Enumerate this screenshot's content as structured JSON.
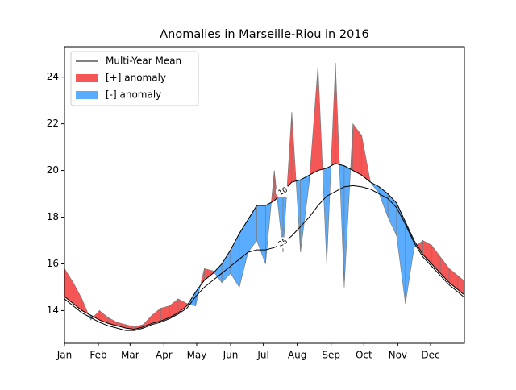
{
  "chart_data": {
    "type": "anomaly",
    "title": "Anomalies in Marseille-Riou in 2016",
    "x": [
      0,
      8,
      16,
      24,
      32,
      40,
      48,
      56,
      64,
      72,
      80,
      88,
      96,
      104,
      112,
      120,
      128,
      136,
      144,
      152,
      160,
      168,
      176,
      184,
      192,
      200,
      208,
      216,
      224,
      232,
      240,
      248,
      256,
      264,
      272,
      280,
      288,
      296,
      304,
      312,
      320,
      328,
      336,
      344,
      352,
      360,
      365
    ],
    "xlim": [
      0,
      366
    ],
    "xticks": [
      {
        "value": 0,
        "label": "Jan"
      },
      {
        "value": 31,
        "label": "Feb"
      },
      {
        "value": 60,
        "label": "Mar"
      },
      {
        "value": 91,
        "label": "Apr"
      },
      {
        "value": 121,
        "label": "May"
      },
      {
        "value": 152,
        "label": "Jun"
      },
      {
        "value": 182,
        "label": "Jul"
      },
      {
        "value": 213,
        "label": "Aug"
      },
      {
        "value": 244,
        "label": "Sep"
      },
      {
        "value": 274,
        "label": "Oct"
      },
      {
        "value": 305,
        "label": "Nov"
      },
      {
        "value": 335,
        "label": "Dec"
      }
    ],
    "ylim": [
      12.6,
      25.3
    ],
    "yticks": [
      14,
      16,
      18,
      20,
      22,
      24
    ],
    "legend": [
      {
        "name": "Multi-Year Mean",
        "color": "#000000"
      },
      {
        "name": "[+] anomaly",
        "color": "#f55656"
      },
      {
        "name": "[-] anomaly",
        "color": "#5aacff"
      }
    ],
    "mean_lines": [
      {
        "label": "10",
        "values": [
          14.6,
          14.3,
          14.0,
          13.8,
          13.6,
          13.45,
          13.35,
          13.25,
          13.2,
          13.3,
          13.45,
          13.55,
          13.7,
          13.9,
          14.2,
          14.8,
          15.3,
          15.6,
          16.0,
          16.6,
          17.3,
          17.9,
          18.5,
          18.5,
          18.7,
          19.1,
          19.5,
          19.6,
          19.8,
          20.0,
          20.1,
          20.3,
          20.2,
          20.0,
          19.8,
          19.5,
          19.3,
          19.0,
          18.6,
          17.8,
          17.0,
          16.4,
          16.0,
          15.6,
          15.2,
          14.9,
          14.7
        ]
      },
      {
        "label": "25",
        "values": [
          14.5,
          14.2,
          13.9,
          13.7,
          13.5,
          13.35,
          13.25,
          13.15,
          13.15,
          13.25,
          13.4,
          13.5,
          13.65,
          13.85,
          14.1,
          14.6,
          15.0,
          15.3,
          15.6,
          15.9,
          16.2,
          16.5,
          16.6,
          16.6,
          16.7,
          16.9,
          17.2,
          17.6,
          18.0,
          18.5,
          18.9,
          19.1,
          19.3,
          19.35,
          19.3,
          19.2,
          19.0,
          18.8,
          18.4,
          17.7,
          16.9,
          16.3,
          15.9,
          15.5,
          15.1,
          14.8,
          14.6
        ]
      }
    ],
    "observed": [
      15.8,
      15.2,
      14.5,
      13.6,
      14.0,
      13.7,
      13.5,
      13.4,
      13.3,
      13.4,
      13.8,
      14.1,
      14.2,
      14.5,
      14.3,
      14.2,
      15.8,
      15.7,
      15.2,
      15.6,
      15.0,
      16.5,
      17.0,
      16.0,
      20.0,
      16.5,
      22.5,
      16.5,
      19.5,
      24.5,
      16.0,
      24.6,
      15.0,
      22.0,
      21.5,
      19.5,
      19.0,
      18.0,
      17.2,
      14.3,
      16.7,
      17.0,
      16.8,
      16.3,
      15.8,
      15.5,
      15.3
    ]
  }
}
